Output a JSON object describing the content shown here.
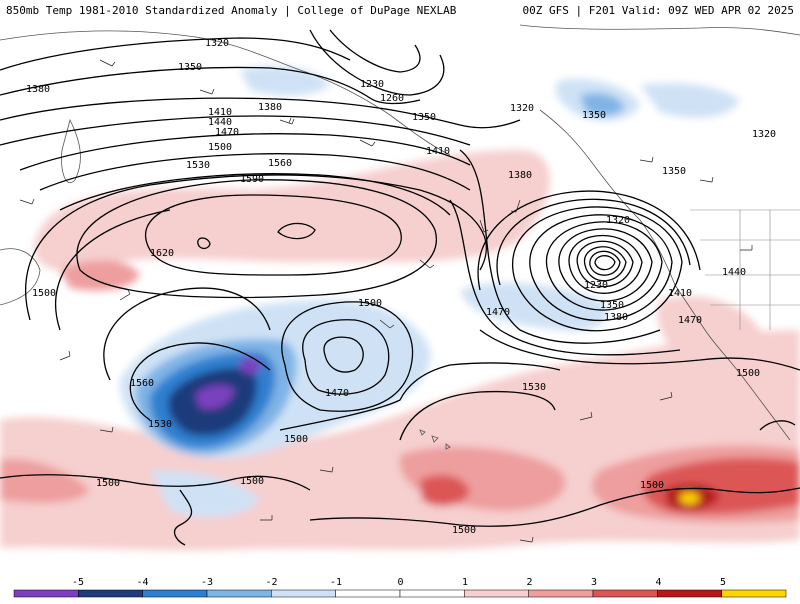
{
  "header": {
    "title": "850mb Temp 1981-2010 Standardized Anomaly | College of DuPage NEXLAB",
    "run_info": "00Z GFS | F201 Valid: 09Z WED APR 02 2025"
  },
  "colors": {
    "neg5": "#7b3fbf",
    "neg4": "#1f3b7a",
    "neg3": "#2f7fd0",
    "neg2": "#7fb4e6",
    "neg1": "#cfe2f5",
    "pos1": "#f6cfcf",
    "pos2": "#ee9e9e",
    "pos3": "#dc5656",
    "pos4": "#b31b1b",
    "pos5": "#ffd400",
    "contour": "#000000"
  },
  "colorbar": {
    "ticks": [
      "-5",
      "-4",
      "-3",
      "-2",
      "-1",
      "0",
      "1",
      "2",
      "3",
      "4",
      "5"
    ]
  },
  "contour_labels": [
    "1320",
    "1350",
    "1380",
    "1230",
    "1260",
    "1320",
    "1410",
    "1440",
    "1470",
    "1350",
    "1380",
    "1500",
    "1530",
    "1560",
    "1590",
    "1620",
    "1410",
    "1350",
    "1320",
    "1380",
    "1320",
    "1350",
    "1500",
    "1470",
    "1230",
    "1350",
    "1380",
    "1410",
    "1440",
    "1470",
    "1500",
    "1560",
    "1530",
    "1500",
    "1470",
    "1530",
    "1500",
    "1500",
    "1500",
    "1500",
    "1500"
  ]
}
